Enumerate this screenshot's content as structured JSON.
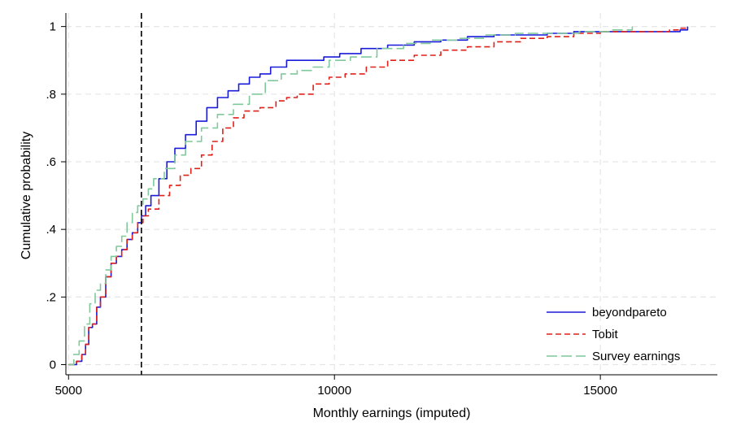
{
  "chart_data": {
    "type": "line",
    "xlabel": "Monthly earnings (imputed)",
    "ylabel": "Cumulative probability",
    "xlim": [
      4950,
      17200
    ],
    "ylim": [
      -0.03,
      1.04
    ],
    "x_ticks": [
      5000,
      10000,
      15000
    ],
    "x_tick_labels": [
      "5000",
      "10000",
      "15000"
    ],
    "y_ticks": [
      0,
      0.2,
      0.4,
      0.6,
      0.8,
      1
    ],
    "y_tick_labels": [
      "0",
      ".2",
      ".4",
      ".6",
      ".8",
      "1"
    ],
    "grid": true,
    "legend_position": "bottom-right",
    "reference_line": {
      "x": 6370,
      "style": "dashed",
      "color": "#000000"
    },
    "series": [
      {
        "name": "beyondpareto",
        "color": "#1a1adb",
        "dash": "solid",
        "points": [
          [
            5000,
            0.0
          ],
          [
            5150,
            0.01
          ],
          [
            5250,
            0.03
          ],
          [
            5320,
            0.06
          ],
          [
            5380,
            0.11
          ],
          [
            5450,
            0.12
          ],
          [
            5530,
            0.17
          ],
          [
            5600,
            0.2
          ],
          [
            5700,
            0.26
          ],
          [
            5800,
            0.3
          ],
          [
            5900,
            0.32
          ],
          [
            6000,
            0.34
          ],
          [
            6100,
            0.37
          ],
          [
            6200,
            0.39
          ],
          [
            6300,
            0.42
          ],
          [
            6370,
            0.44
          ],
          [
            6450,
            0.47
          ],
          [
            6550,
            0.5
          ],
          [
            6700,
            0.55
          ],
          [
            6850,
            0.6
          ],
          [
            7000,
            0.64
          ],
          [
            7200,
            0.68
          ],
          [
            7400,
            0.72
          ],
          [
            7600,
            0.76
          ],
          [
            7800,
            0.79
          ],
          [
            8000,
            0.81
          ],
          [
            8200,
            0.83
          ],
          [
            8400,
            0.85
          ],
          [
            8600,
            0.86
          ],
          [
            8800,
            0.88
          ],
          [
            9000,
            0.88
          ],
          [
            9100,
            0.9
          ],
          [
            9500,
            0.9
          ],
          [
            9800,
            0.91
          ],
          [
            10100,
            0.92
          ],
          [
            10500,
            0.935
          ],
          [
            11000,
            0.945
          ],
          [
            11500,
            0.955
          ],
          [
            12000,
            0.96
          ],
          [
            12500,
            0.97
          ],
          [
            13000,
            0.975
          ],
          [
            13500,
            0.975
          ],
          [
            14000,
            0.98
          ],
          [
            14500,
            0.985
          ],
          [
            15000,
            0.985
          ],
          [
            15500,
            0.985
          ],
          [
            16000,
            0.985
          ],
          [
            16500,
            0.99
          ],
          [
            16640,
            1.0
          ]
        ]
      },
      {
        "name": "Tobit",
        "color": "#e0211a",
        "dash": "dashed",
        "points": [
          [
            5000,
            0.0
          ],
          [
            5150,
            0.01
          ],
          [
            5250,
            0.03
          ],
          [
            5320,
            0.06
          ],
          [
            5380,
            0.11
          ],
          [
            5450,
            0.12
          ],
          [
            5530,
            0.17
          ],
          [
            5600,
            0.2
          ],
          [
            5700,
            0.26
          ],
          [
            5800,
            0.3
          ],
          [
            5900,
            0.32
          ],
          [
            6000,
            0.34
          ],
          [
            6100,
            0.37
          ],
          [
            6200,
            0.39
          ],
          [
            6300,
            0.42
          ],
          [
            6400,
            0.44
          ],
          [
            6500,
            0.46
          ],
          [
            6700,
            0.5
          ],
          [
            6900,
            0.53
          ],
          [
            7100,
            0.56
          ],
          [
            7300,
            0.58
          ],
          [
            7500,
            0.62
          ],
          [
            7700,
            0.66
          ],
          [
            7900,
            0.7
          ],
          [
            8100,
            0.73
          ],
          [
            8300,
            0.75
          ],
          [
            8600,
            0.76
          ],
          [
            8900,
            0.78
          ],
          [
            9100,
            0.79
          ],
          [
            9300,
            0.8
          ],
          [
            9600,
            0.83
          ],
          [
            9900,
            0.85
          ],
          [
            10200,
            0.86
          ],
          [
            10600,
            0.88
          ],
          [
            11000,
            0.9
          ],
          [
            11500,
            0.915
          ],
          [
            12000,
            0.93
          ],
          [
            12500,
            0.94
          ],
          [
            13000,
            0.955
          ],
          [
            13500,
            0.965
          ],
          [
            14000,
            0.97
          ],
          [
            14500,
            0.98
          ],
          [
            15000,
            0.985
          ],
          [
            15500,
            0.985
          ],
          [
            16000,
            0.985
          ],
          [
            16300,
            0.99
          ],
          [
            16500,
            0.995
          ],
          [
            16640,
            1.0
          ]
        ]
      },
      {
        "name": "Survey earnings",
        "color": "#7fc99b",
        "dash": "longdash",
        "points": [
          [
            5000,
            0.0
          ],
          [
            5100,
            0.03
          ],
          [
            5200,
            0.07
          ],
          [
            5300,
            0.12
          ],
          [
            5400,
            0.18
          ],
          [
            5500,
            0.22
          ],
          [
            5600,
            0.24
          ],
          [
            5700,
            0.28
          ],
          [
            5800,
            0.32
          ],
          [
            5900,
            0.35
          ],
          [
            6000,
            0.38
          ],
          [
            6100,
            0.42
          ],
          [
            6200,
            0.45
          ],
          [
            6300,
            0.47
          ],
          [
            6400,
            0.49
          ],
          [
            6500,
            0.52
          ],
          [
            6600,
            0.55
          ],
          [
            6800,
            0.58
          ],
          [
            7000,
            0.62
          ],
          [
            7200,
            0.66
          ],
          [
            7500,
            0.7
          ],
          [
            7800,
            0.74
          ],
          [
            8100,
            0.77
          ],
          [
            8400,
            0.8
          ],
          [
            8700,
            0.84
          ],
          [
            9000,
            0.86
          ],
          [
            9300,
            0.87
          ],
          [
            9600,
            0.88
          ],
          [
            9900,
            0.9
          ],
          [
            10300,
            0.91
          ],
          [
            10800,
            0.935
          ],
          [
            11300,
            0.95
          ],
          [
            11800,
            0.96
          ],
          [
            12300,
            0.965
          ],
          [
            12800,
            0.975
          ],
          [
            13400,
            0.98
          ],
          [
            14000,
            0.98
          ],
          [
            14600,
            0.985
          ],
          [
            15200,
            0.99
          ],
          [
            15600,
            1.0
          ]
        ]
      }
    ]
  }
}
